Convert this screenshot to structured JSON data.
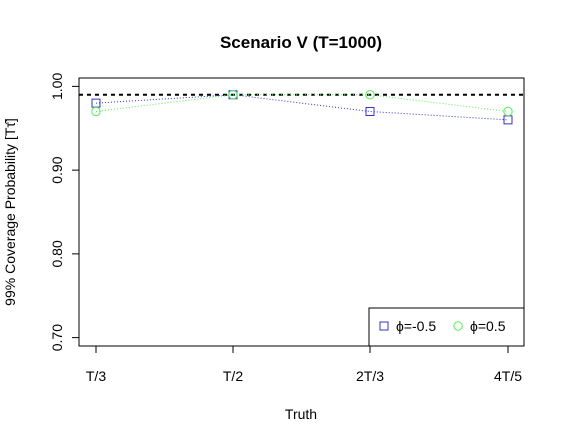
{
  "chart_data": {
    "type": "line",
    "title": "Scenario V (T=1000)",
    "xlabel": "Truth",
    "ylabel": "99% Coverage Probability [Tτ̂]",
    "categories": [
      "T/3",
      "T/2",
      "2T/3",
      "4T/5"
    ],
    "yticks": [
      "0.70",
      "0.80",
      "0.90",
      "1.00"
    ],
    "ylim": [
      0.69,
      1.01
    ],
    "reference_line": 0.99,
    "series": [
      {
        "name": "ϕ=-0.5",
        "marker": "square",
        "color": "#3333cc",
        "values": [
          0.98,
          0.99,
          0.97,
          0.96
        ]
      },
      {
        "name": "ϕ=0.5",
        "marker": "circle",
        "color": "#55ee55",
        "values": [
          0.97,
          0.99,
          0.99,
          0.97
        ]
      }
    ],
    "legend_position": "bottom-right",
    "grid": false
  }
}
